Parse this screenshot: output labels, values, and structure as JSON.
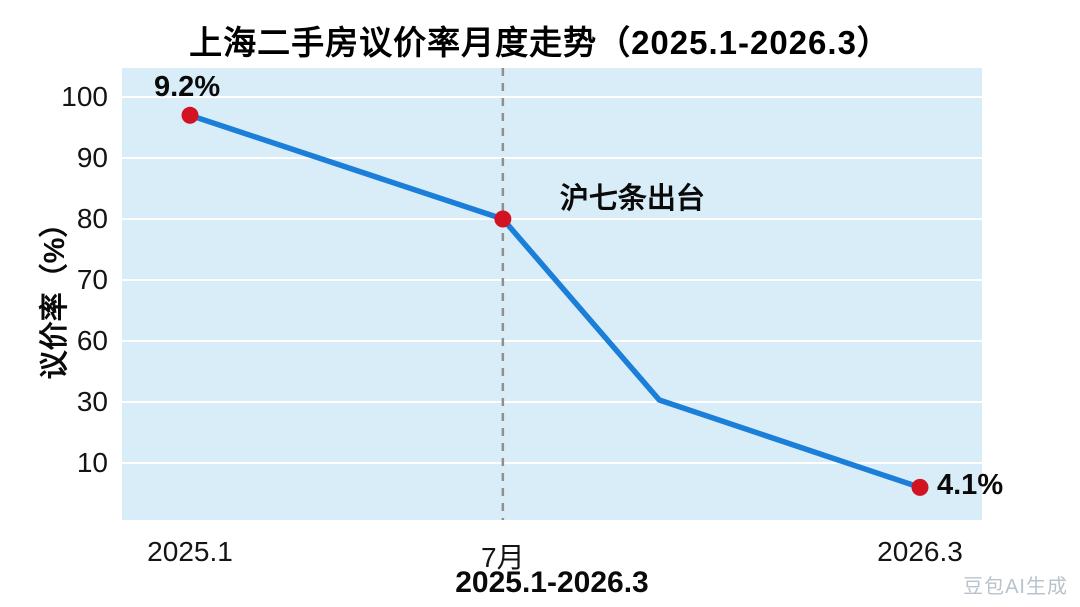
{
  "watermark": "豆包AI生成",
  "chart_data": {
    "type": "line",
    "title": "上海二手房议价率月度走势（2025.1-2026.3）",
    "xlabel": "2025.1-2026.3",
    "ylabel": "议价率（%）",
    "yticks": [
      100,
      90,
      80,
      70,
      60,
      30,
      10
    ],
    "xticks": [
      {
        "pos": 0,
        "label": "2025.1"
      },
      {
        "pos": 6,
        "label": "7月"
      },
      {
        "pos": 14,
        "label": "2026.3"
      }
    ],
    "x_range": [
      0,
      14
    ],
    "grid": true,
    "legend": false,
    "points": [
      {
        "x": 0,
        "y": 97,
        "label": "9.2%",
        "marker": true
      },
      {
        "x": 6,
        "y": 80,
        "label": "",
        "marker": true
      },
      {
        "x": 9,
        "y": 31,
        "label": "",
        "marker": false
      },
      {
        "x": 14,
        "y": 6,
        "label": "4.1%",
        "marker": true
      }
    ],
    "vline": {
      "x": 6,
      "label": "沪七条出台",
      "style": "dashed",
      "color": "#8f8f8f"
    },
    "colors": {
      "line": "#1b7ed8",
      "marker": "#d11322",
      "plot_bg": "#d9edf8",
      "grid": "#ffffff",
      "text": "#0a0a0a"
    }
  }
}
